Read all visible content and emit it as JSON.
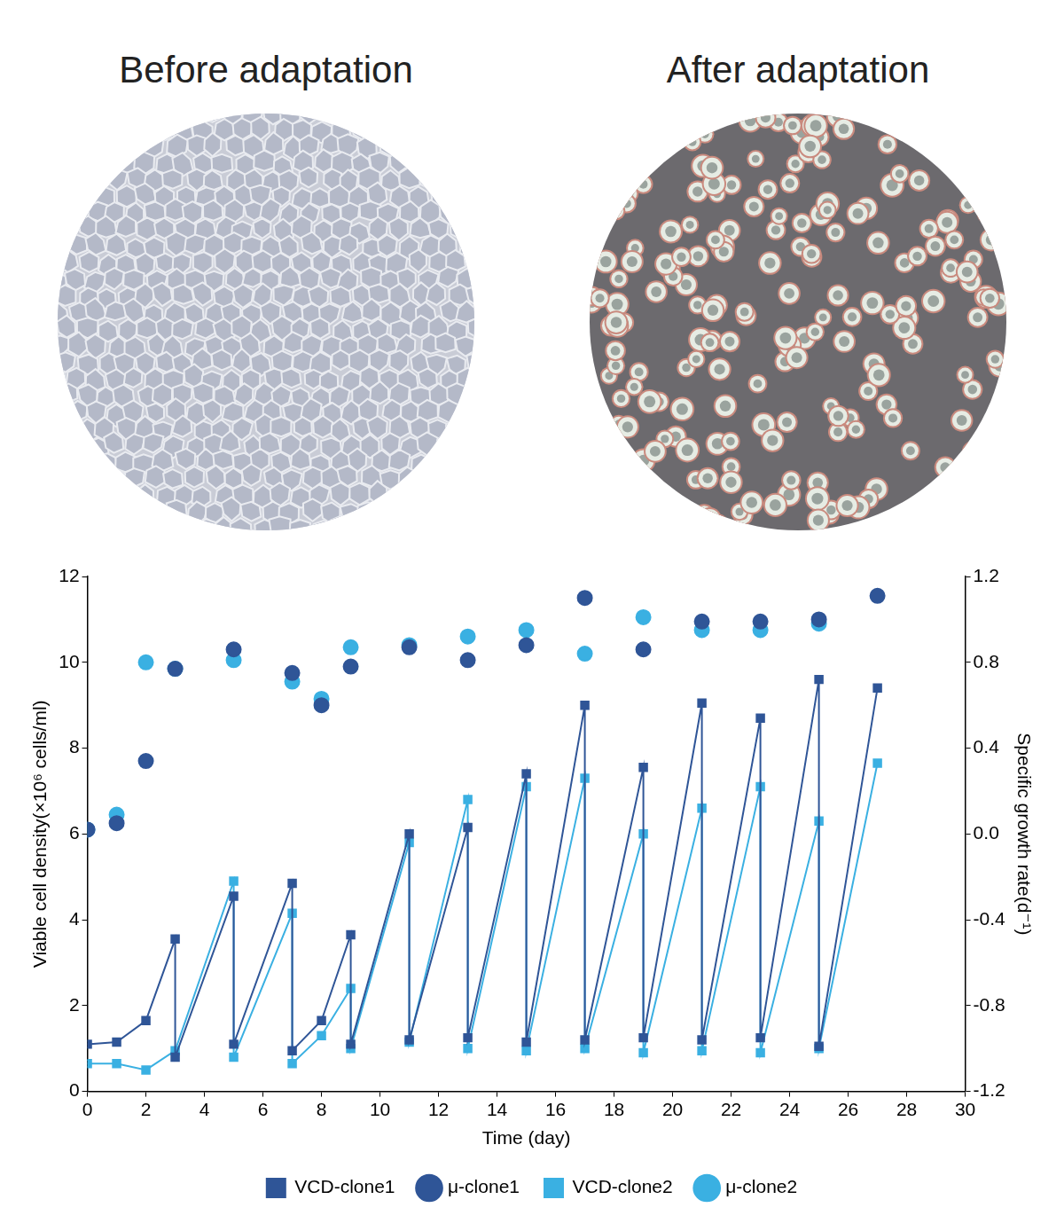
{
  "images": [
    {
      "title": "Before adaptation"
    },
    {
      "title": "After adaptation"
    }
  ],
  "chart_data": {
    "type": "line",
    "x_label": "Time (day)",
    "y_label": "Viable cell density(×10⁶ cells/ml)",
    "y2_label": "Specific growth rate(d⁻¹)",
    "xlim": [
      0,
      30
    ],
    "xticks": [
      0,
      2,
      4,
      6,
      8,
      10,
      12,
      14,
      16,
      18,
      20,
      22,
      24,
      26,
      28,
      30
    ],
    "ylim": [
      0,
      12
    ],
    "yticks": [
      0,
      2,
      4,
      6,
      8,
      10,
      12
    ],
    "y2lim": [
      -1.2,
      1.2
    ],
    "y2ticks": [
      -1.2,
      -0.8,
      -0.4,
      {
        "value": 0,
        "label": "0.0"
      },
      0.4,
      0.8,
      1.2
    ],
    "grid": false,
    "legend": "bottom",
    "series": [
      {
        "name": "VCD-clone1",
        "color": "#2f5597",
        "type": "line",
        "marker": "square",
        "line_style": "solid",
        "x": [
          0,
          1,
          2,
          3,
          3,
          5,
          5,
          7,
          7,
          8,
          9,
          9,
          11,
          11,
          13,
          13,
          15,
          15,
          17,
          17,
          19,
          19,
          21,
          21,
          23,
          23,
          25,
          25,
          27
        ],
        "values": [
          1.1,
          1.15,
          1.65,
          3.55,
          0.8,
          4.55,
          1.1,
          4.85,
          0.95,
          1.65,
          3.65,
          1.1,
          6.0,
          1.2,
          6.15,
          1.25,
          7.4,
          1.15,
          9.0,
          1.2,
          7.55,
          1.25,
          9.05,
          1.2,
          8.7,
          1.25,
          9.6,
          1.05,
          9.4
        ]
      },
      {
        "name": "μ-clone1",
        "color": "#2f5597",
        "type": "scatter",
        "marker": "circle",
        "line_style": "none",
        "axis": "y2",
        "x": [
          0,
          1,
          2,
          3,
          5,
          7,
          8,
          9,
          11,
          13,
          15,
          17,
          19,
          21,
          23,
          25,
          27
        ],
        "values": [
          0.02,
          0.05,
          0.34,
          0.77,
          0.86,
          0.75,
          0.6,
          0.78,
          0.87,
          0.81,
          0.88,
          1.1,
          0.86,
          0.99,
          0.99,
          1.0,
          1.11
        ]
      },
      {
        "name": "VCD-clone2",
        "color": "#3ab0e2",
        "type": "line",
        "marker": "square",
        "line_style": "solid",
        "x": [
          0,
          1,
          2,
          3,
          5,
          5,
          7,
          7,
          8,
          9,
          9,
          11,
          11,
          13,
          13,
          15,
          15,
          17,
          17,
          19,
          19,
          21,
          21,
          23,
          23,
          25,
          25,
          27
        ],
        "values": [
          0.65,
          0.65,
          0.5,
          0.95,
          4.9,
          0.8,
          4.15,
          0.65,
          1.3,
          2.4,
          1.0,
          5.8,
          1.15,
          6.8,
          1.0,
          7.1,
          0.95,
          7.3,
          1.0,
          6.0,
          0.9,
          6.6,
          0.95,
          7.1,
          0.9,
          6.3,
          1.0,
          7.65
        ]
      },
      {
        "name": "μ-clone2",
        "color": "#3ab0e2",
        "type": "scatter",
        "marker": "circle",
        "line_style": "none",
        "axis": "y2",
        "x": [
          0,
          1,
          2,
          3,
          5,
          7,
          8,
          9,
          11,
          13,
          15,
          17,
          19,
          21,
          23,
          25
        ],
        "values": [
          0.02,
          0.09,
          0.8,
          0.77,
          0.81,
          0.71,
          0.63,
          0.87,
          0.88,
          0.92,
          0.95,
          0.84,
          1.01,
          0.95,
          0.95,
          0.98
        ]
      }
    ]
  }
}
